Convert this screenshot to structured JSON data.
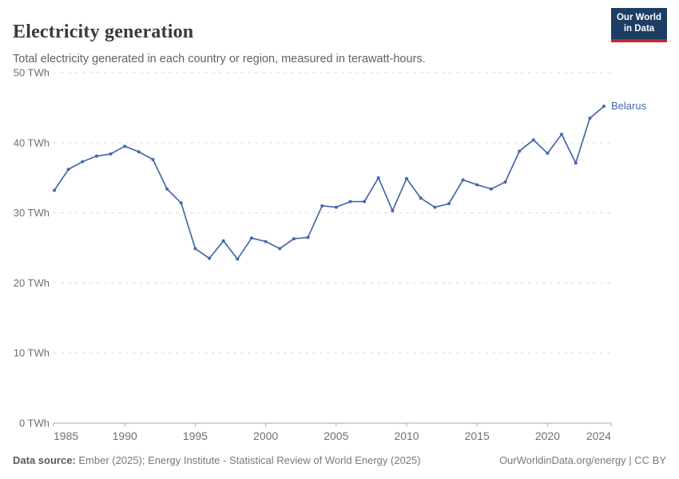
{
  "header": {
    "title": "Electricity generation",
    "subtitle": "Total electricity generated in each country or region, measured in terawatt-hours.",
    "logo": {
      "line1": "Our World",
      "line2": "in Data",
      "bg_color": "#1d3d63",
      "accent_color": "#c8262d"
    }
  },
  "chart_data": {
    "type": "line",
    "title": "Electricity generation",
    "unit": "terawatt-hours",
    "grid": "horizontal-dashed",
    "legend_position": "end-of-line-label",
    "xlim": [
      1985,
      2024
    ],
    "ylim": [
      0,
      50
    ],
    "x_ticks": [
      1985,
      1990,
      1995,
      2000,
      2005,
      2010,
      2015,
      2020,
      2024
    ],
    "y_ticks": [
      0,
      10,
      20,
      30,
      40,
      50
    ],
    "y_tick_suffix": " TWh",
    "x": [
      1985,
      1986,
      1987,
      1988,
      1989,
      1990,
      1991,
      1992,
      1993,
      1994,
      1995,
      1996,
      1997,
      1998,
      1999,
      2000,
      2001,
      2002,
      2003,
      2004,
      2005,
      2006,
      2007,
      2008,
      2009,
      2010,
      2011,
      2012,
      2013,
      2014,
      2015,
      2016,
      2017,
      2018,
      2019,
      2020,
      2021,
      2022,
      2023,
      2024
    ],
    "series": [
      {
        "name": "Belarus",
        "color": "#4668a7",
        "values": [
          33.2,
          36.2,
          37.3,
          38.1,
          38.4,
          39.5,
          38.7,
          37.6,
          33.4,
          31.4,
          24.9,
          23.5,
          26.0,
          23.4,
          26.4,
          25.9,
          24.9,
          26.3,
          26.5,
          31.0,
          30.8,
          31.6,
          31.6,
          35.0,
          30.3,
          34.9,
          32.1,
          30.8,
          31.3,
          34.7,
          34.0,
          33.4,
          34.4,
          38.8,
          40.4,
          38.5,
          41.2,
          37.1,
          43.5,
          45.2
        ]
      }
    ]
  },
  "footer": {
    "datasource_label": "Data source:",
    "datasource_text": "Ember (2025); Energy Institute - Statistical Review of World Energy (2025)",
    "license_text": "OurWorldinData.org/energy | CC BY"
  },
  "colors": {
    "gridline": "#dcdcdc",
    "axis": "#a8a8a8",
    "tick_label": "#707070"
  }
}
